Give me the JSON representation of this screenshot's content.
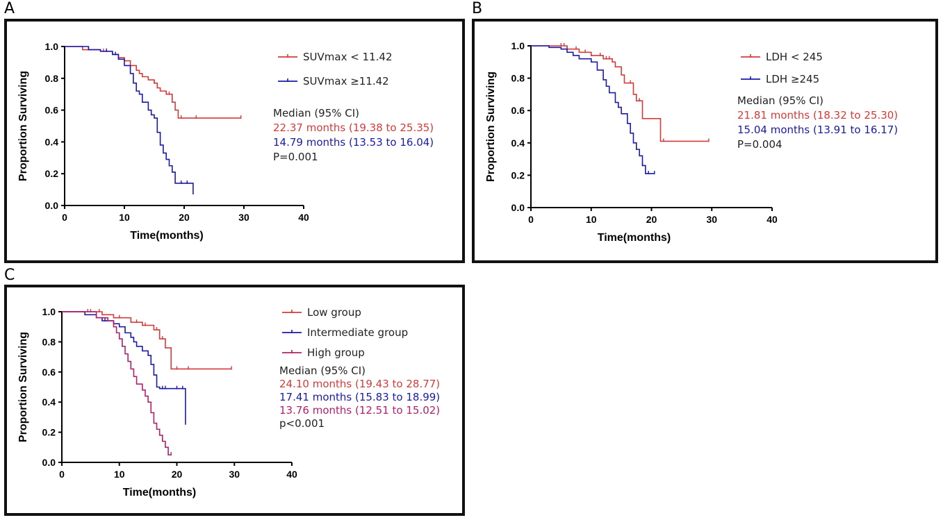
{
  "chart_data": [
    {
      "panel_label": "A",
      "type": "line",
      "subtype": "kaplan-meier",
      "xlabel": "Time(months)",
      "ylabel": "Proportion Surviving",
      "xlim": [
        0,
        40
      ],
      "ylim": [
        0,
        1.0
      ],
      "xticks": [
        "0",
        "10",
        "20",
        "30",
        "40"
      ],
      "yticks": [
        "0.0",
        "0.2",
        "0.4",
        "0.6",
        "0.8",
        "1.0"
      ],
      "series": [
        {
          "name": "SUVmax < 11.42",
          "color": "#d43a3a",
          "steps": [
            [
              0,
              1.0
            ],
            [
              3,
              0.98
            ],
            [
              6,
              0.97
            ],
            [
              8,
              0.95
            ],
            [
              9,
              0.93
            ],
            [
              10,
              0.91
            ],
            [
              11,
              0.88
            ],
            [
              12,
              0.85
            ],
            [
              12.5,
              0.83
            ],
            [
              13,
              0.81
            ],
            [
              14,
              0.79
            ],
            [
              15,
              0.77
            ],
            [
              15.5,
              0.74
            ],
            [
              16,
              0.72
            ],
            [
              17,
              0.7
            ],
            [
              18,
              0.65
            ],
            [
              18.5,
              0.6
            ],
            [
              19,
              0.55
            ],
            [
              29.5,
              0.55
            ]
          ],
          "censor": [
            4,
            6.5,
            7,
            15,
            17.5,
            19.5,
            22,
            29.5
          ]
        },
        {
          "name": "SUVmax ≥11.42",
          "color": "#1a1aa6",
          "steps": [
            [
              0,
              1.0
            ],
            [
              4,
              0.98
            ],
            [
              6,
              0.97
            ],
            [
              8,
              0.95
            ],
            [
              9,
              0.92
            ],
            [
              10,
              0.88
            ],
            [
              11,
              0.83
            ],
            [
              11.5,
              0.77
            ],
            [
              12,
              0.72
            ],
            [
              12.5,
              0.7
            ],
            [
              13,
              0.65
            ],
            [
              14,
              0.6
            ],
            [
              14.5,
              0.57
            ],
            [
              15,
              0.55
            ],
            [
              15.5,
              0.46
            ],
            [
              16,
              0.38
            ],
            [
              16.5,
              0.33
            ],
            [
              17,
              0.29
            ],
            [
              17.5,
              0.25
            ],
            [
              18,
              0.21
            ],
            [
              18.5,
              0.14
            ],
            [
              21.5,
              0.07
            ]
          ],
          "censor": [
            7,
            8.5,
            19.5,
            20.5
          ]
        }
      ],
      "legend": [
        {
          "label": "SUVmax < 11.42",
          "color": "#d43a3a"
        },
        {
          "label": "SUVmax ≥11.42",
          "color": "#1a1aa6"
        }
      ],
      "annotations": [
        {
          "text": "Median (95% CI)",
          "color": "#222222"
        },
        {
          "text": "22.37 months (19.38 to 25.35)",
          "color": "#d43a3a"
        },
        {
          "text": "14.79 months (13.53 to 16.04)",
          "color": "#1a1aa6"
        },
        {
          "text": "P=0.001",
          "color": "#222222"
        }
      ]
    },
    {
      "panel_label": "B",
      "type": "line",
      "subtype": "kaplan-meier",
      "xlabel": "Time(months)",
      "ylabel": "Proportion Surviving",
      "xlim": [
        0,
        40
      ],
      "ylim": [
        0,
        1.0
      ],
      "xticks": [
        "0",
        "10",
        "20",
        "30",
        "40"
      ],
      "yticks": [
        "0.0",
        "0.2",
        "0.4",
        "0.6",
        "0.8",
        "1.0"
      ],
      "series": [
        {
          "name": "LDH < 245",
          "color": "#d43a3a",
          "steps": [
            [
              0,
              1.0
            ],
            [
              6,
              0.98
            ],
            [
              8,
              0.96
            ],
            [
              10,
              0.94
            ],
            [
              12,
              0.92
            ],
            [
              13.5,
              0.9
            ],
            [
              14,
              0.87
            ],
            [
              15,
              0.82
            ],
            [
              15.5,
              0.77
            ],
            [
              17,
              0.7
            ],
            [
              17.5,
              0.66
            ],
            [
              18.5,
              0.55
            ],
            [
              21.5,
              0.41
            ],
            [
              29.5,
              0.41
            ]
          ],
          "censor": [
            5,
            5.5,
            6,
            7.5,
            9,
            10,
            11.5,
            12.5,
            13,
            16.5,
            18,
            22,
            29.5
          ]
        },
        {
          "name": "LDH ≥245",
          "color": "#1a1aa6",
          "steps": [
            [
              0,
              1.0
            ],
            [
              3,
              0.99
            ],
            [
              5,
              0.98
            ],
            [
              6,
              0.96
            ],
            [
              7,
              0.94
            ],
            [
              8,
              0.92
            ],
            [
              10,
              0.9
            ],
            [
              11,
              0.85
            ],
            [
              12,
              0.79
            ],
            [
              12.5,
              0.75
            ],
            [
              13,
              0.71
            ],
            [
              14,
              0.65
            ],
            [
              14.5,
              0.62
            ],
            [
              15,
              0.58
            ],
            [
              16,
              0.52
            ],
            [
              16.5,
              0.46
            ],
            [
              17,
              0.4
            ],
            [
              17.5,
              0.36
            ],
            [
              18,
              0.32
            ],
            [
              18.5,
              0.26
            ],
            [
              19,
              0.21
            ],
            [
              20.5,
              0.21
            ]
          ],
          "censor": [
            17.5,
            18.5,
            19.5,
            20.5
          ]
        }
      ],
      "legend": [
        {
          "label": "LDH < 245",
          "color": "#d43a3a"
        },
        {
          "label": "LDH ≥245",
          "color": "#1a1aa6"
        }
      ],
      "annotations": [
        {
          "text": "Median (95% CI)",
          "color": "#222222"
        },
        {
          "text": "21.81 months (18.32 to 25.30)",
          "color": "#d43a3a"
        },
        {
          "text": "15.04 months (13.91 to 16.17)",
          "color": "#1a1aa6"
        },
        {
          "text": "P=0.004",
          "color": "#222222"
        }
      ]
    },
    {
      "panel_label": "C",
      "type": "line",
      "subtype": "kaplan-meier",
      "xlabel": "Time(months)",
      "ylabel": "Proportion Surviving",
      "xlim": [
        0,
        40
      ],
      "ylim": [
        0,
        1.0
      ],
      "xticks": [
        "0",
        "10",
        "20",
        "30",
        "40"
      ],
      "yticks": [
        "0.0",
        "0.2",
        "0.4",
        "0.6",
        "0.8",
        "1.0"
      ],
      "series": [
        {
          "name": "Low group",
          "color": "#d43a3a",
          "steps": [
            [
              0,
              1.0
            ],
            [
              7,
              0.98
            ],
            [
              9,
              0.96
            ],
            [
              12,
              0.93
            ],
            [
              14,
              0.91
            ],
            [
              16,
              0.88
            ],
            [
              17,
              0.82
            ],
            [
              18,
              0.76
            ],
            [
              19,
              0.62
            ],
            [
              29.5,
              0.62
            ]
          ],
          "censor": [
            4.5,
            5,
            6.5,
            10,
            13,
            14.5,
            16.5,
            17.5,
            20,
            22,
            29.5
          ]
        },
        {
          "name": "Intermediate group",
          "color": "#1a1aa6",
          "steps": [
            [
              0,
              1.0
            ],
            [
              4,
              0.98
            ],
            [
              6,
              0.96
            ],
            [
              7,
              0.94
            ],
            [
              9,
              0.92
            ],
            [
              10,
              0.9
            ],
            [
              11,
              0.86
            ],
            [
              12,
              0.83
            ],
            [
              12.5,
              0.8
            ],
            [
              13,
              0.77
            ],
            [
              14,
              0.74
            ],
            [
              15,
              0.71
            ],
            [
              15.5,
              0.65
            ],
            [
              16,
              0.58
            ],
            [
              16.5,
              0.5
            ],
            [
              17,
              0.49
            ],
            [
              21.5,
              0.25
            ]
          ],
          "censor": [
            7.5,
            8,
            17.5,
            18,
            20,
            21
          ]
        },
        {
          "name": "High group",
          "color": "#b0206c",
          "steps": [
            [
              0,
              1.0
            ],
            [
              6,
              0.96
            ],
            [
              8,
              0.94
            ],
            [
              9,
              0.9
            ],
            [
              9.5,
              0.86
            ],
            [
              10,
              0.82
            ],
            [
              10.5,
              0.77
            ],
            [
              11,
              0.72
            ],
            [
              11.5,
              0.67
            ],
            [
              12,
              0.62
            ],
            [
              12.5,
              0.57
            ],
            [
              13,
              0.52
            ],
            [
              14,
              0.48
            ],
            [
              14.5,
              0.44
            ],
            [
              15,
              0.4
            ],
            [
              15.5,
              0.33
            ],
            [
              16,
              0.26
            ],
            [
              16.5,
              0.22
            ],
            [
              17,
              0.18
            ],
            [
              17.5,
              0.14
            ],
            [
              18,
              0.1
            ],
            [
              18.5,
              0.05
            ],
            [
              19,
              0.05
            ]
          ],
          "censor": [
            19
          ]
        }
      ],
      "legend": [
        {
          "label": "Low group",
          "color": "#d43a3a"
        },
        {
          "label": "Intermediate group",
          "color": "#1a1aa6"
        },
        {
          "label": "High group",
          "color": "#b0206c"
        }
      ],
      "annotations": [
        {
          "text": "Median (95% CI)",
          "color": "#222222"
        },
        {
          "text": "24.10 months (19.43 to 28.77)",
          "color": "#d43a3a"
        },
        {
          "text": "17.41 months (15.83 to 18.99)",
          "color": "#1a1aa6"
        },
        {
          "text": "13.76 months (12.51 to 15.02)",
          "color": "#b0206c"
        },
        {
          "text": "p<0.001",
          "color": "#222222"
        }
      ]
    }
  ]
}
